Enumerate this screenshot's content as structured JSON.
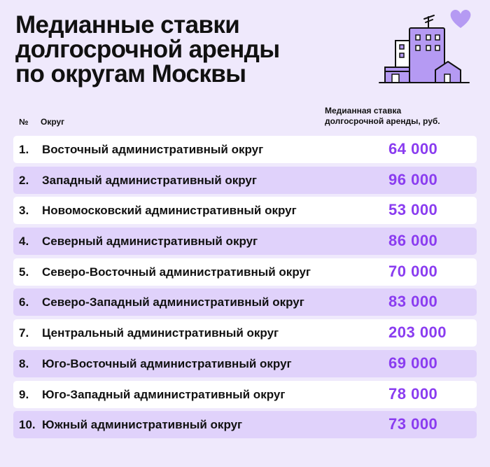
{
  "title_lines": [
    "Медианные ставки",
    "долгосрочной аренды",
    "по округам Москвы"
  ],
  "headers": {
    "num": "№",
    "district": "Округ",
    "rate_lines": [
      "Медианная ставка",
      "долгосрочной аренды, руб."
    ]
  },
  "colors": {
    "background": "#efe9fc",
    "row_light": "#ffffff",
    "row_alt": "#e0d2fb",
    "value_accent": "#8a3cf0",
    "illustration_purple": "#b59af3"
  },
  "icons": [
    "building-illustration",
    "heart-icon",
    "antenna-icon"
  ],
  "chart_data": {
    "type": "table",
    "title": "Медианные ставки долгосрочной аренды по округам Москвы",
    "columns": [
      "№",
      "Округ",
      "Медианная ставка долгосрочной аренды, руб."
    ],
    "rows": [
      {
        "num": "1.",
        "district": "Восточный административный округ",
        "value": 64000,
        "value_text": "64 000"
      },
      {
        "num": "2.",
        "district": "Западный административный округ",
        "value": 96000,
        "value_text": "96 000"
      },
      {
        "num": "3.",
        "district": "Новомосковский административный округ",
        "value": 53000,
        "value_text": "53 000"
      },
      {
        "num": "4.",
        "district": "Северный административный округ",
        "value": 86000,
        "value_text": "86 000"
      },
      {
        "num": "5.",
        "district": "Северо-Восточный административный округ",
        "value": 70000,
        "value_text": "70 000"
      },
      {
        "num": "6.",
        "district": "Северо-Западный административный округ",
        "value": 83000,
        "value_text": "83 000"
      },
      {
        "num": "7.",
        "district": "Центральный административный округ",
        "value": 203000,
        "value_text": "203 000"
      },
      {
        "num": "8.",
        "district": "Юго-Восточный административный округ",
        "value": 69000,
        "value_text": "69 000"
      },
      {
        "num": "9.",
        "district": "Юго-Западный административный округ",
        "value": 78000,
        "value_text": "78 000"
      },
      {
        "num": "10.",
        "district": "Южный административный округ",
        "value": 73000,
        "value_text": "73 000"
      }
    ]
  }
}
